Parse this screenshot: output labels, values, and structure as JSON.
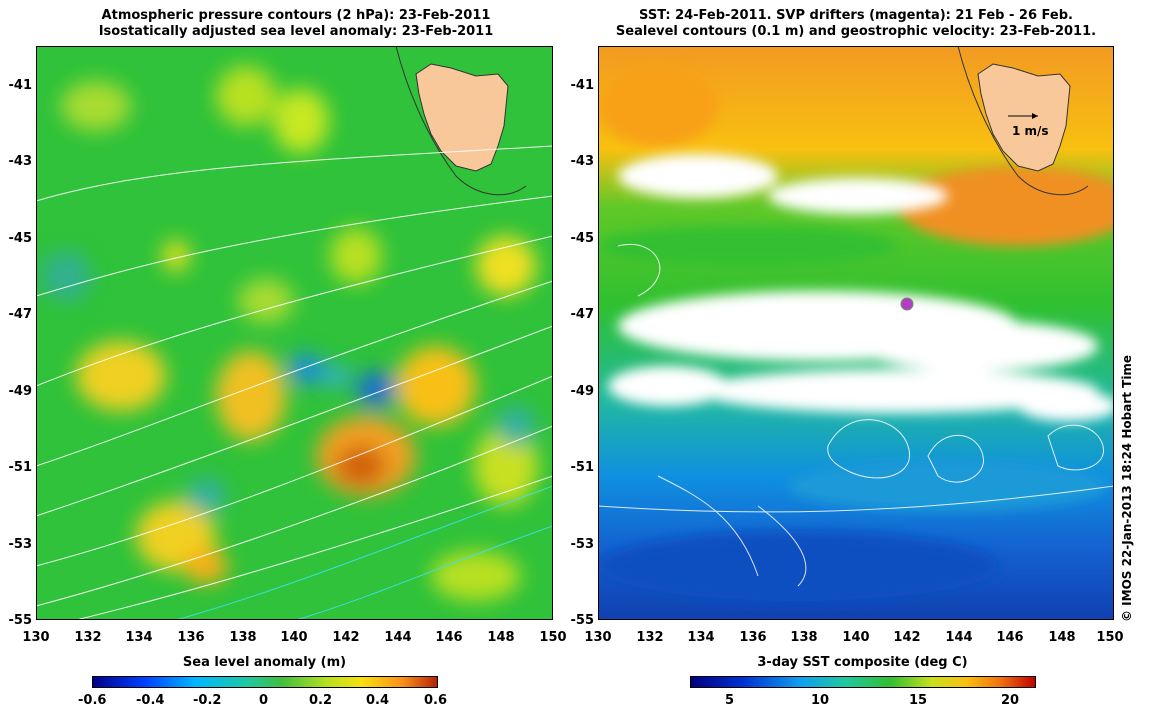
{
  "left_panel": {
    "title_line1": "Atmospheric pressure contours (2 hPa): 23-Feb-2011",
    "title_line2": "Isostatically adjusted sea level anomaly: 23-Feb-2011",
    "y_ticks": [
      "-41",
      "-43",
      "-45",
      "-47",
      "-49",
      "-51",
      "-53",
      "-55"
    ],
    "x_ticks": [
      "130",
      "132",
      "134",
      "136",
      "138",
      "140",
      "142",
      "144",
      "146",
      "148",
      "150"
    ],
    "colorbar_title": "Sea level anomaly (m)",
    "colorbar_ticks": [
      "-0.6",
      "-0.4",
      "-0.2",
      "0",
      "0.2",
      "0.4",
      "0.6"
    ]
  },
  "right_panel": {
    "title_line1": "SST: 24-Feb-2011. SVP drifters (magenta): 21 Feb - 26 Feb.",
    "title_line2": "Sealevel contours (0.1 m) and geostrophic velocity: 23-Feb-2011.",
    "y_ticks": [
      "-41",
      "-43",
      "-45",
      "-47",
      "-49",
      "-51",
      "-53",
      "-55"
    ],
    "x_ticks": [
      "130",
      "132",
      "134",
      "136",
      "138",
      "140",
      "142",
      "144",
      "146",
      "148",
      "150"
    ],
    "scale_label": "1 m/s",
    "colorbar_title": "3-day SST composite (deg C)",
    "colorbar_ticks": [
      "5",
      "10",
      "15",
      "20"
    ]
  },
  "credit": "© IMOS 22-Jan-2013 18:24 Hobart Time",
  "map_data": {
    "lon_range": [
      130,
      150
    ],
    "lat_range": [
      -55,
      -40
    ],
    "drifter": {
      "lon": 142.0,
      "lat": -46.8
    },
    "colors": {
      "land": "#f8c89a",
      "ssh_neutral": "#2fc23a",
      "ssh_high": "#f0a020",
      "ssh_low": "#1f8fd8",
      "sst_warm": "#f29a22",
      "sst_mid": "#2ec23c",
      "sst_cold": "#1468d0",
      "drifter": "#b040c0"
    },
    "ssh_colormap": [
      "#00008b",
      "#0040ff",
      "#00b8ff",
      "#20c8a0",
      "#40c040",
      "#b8e020",
      "#f8e010",
      "#f89018",
      "#b82008"
    ],
    "sst_colormap": [
      "#000080",
      "#0030d0",
      "#10a0f0",
      "#20c8a0",
      "#30c030",
      "#c8e020",
      "#f8c010",
      "#f07010",
      "#c00000"
    ]
  }
}
